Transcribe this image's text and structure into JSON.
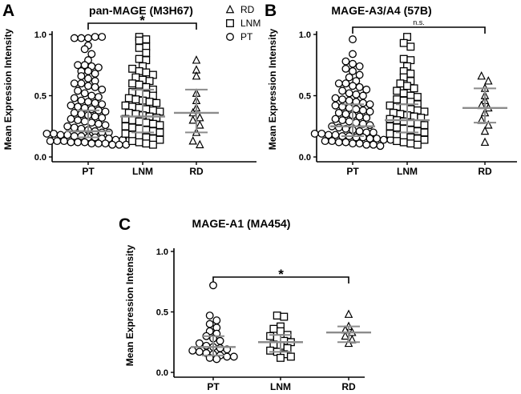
{
  "chart_data": [
    {
      "panel": "A",
      "type": "scatter",
      "title": "pan-MAGE (M3H67)",
      "ylabel": "Mean Expression Intensity",
      "categories": [
        "PT",
        "LNM",
        "RD"
      ],
      "ylim": [
        0,
        1.05
      ],
      "yticks": [
        "0.0",
        "0.5",
        "1.0"
      ],
      "legend": {
        "placement": "top-right",
        "entries": [
          {
            "label": "RD",
            "marker": "triangle"
          },
          {
            "label": "LNM",
            "marker": "square"
          },
          {
            "label": "PT",
            "marker": "circle"
          }
        ]
      },
      "comparison": {
        "from": "PT",
        "to": "RD",
        "label": "*"
      },
      "series": [
        {
          "category": "PT",
          "marker": "circle",
          "median": 0.21,
          "q1": 0.16,
          "q3": 0.38,
          "values": [
            0.97,
            0.97,
            0.97,
            0.98,
            0.98,
            0.91,
            0.88,
            0.84,
            0.79,
            0.75,
            0.75,
            0.74,
            0.73,
            0.7,
            0.7,
            0.68,
            0.66,
            0.64,
            0.62,
            0.6,
            0.6,
            0.58,
            0.57,
            0.55,
            0.54,
            0.52,
            0.5,
            0.49,
            0.48,
            0.46,
            0.45,
            0.44,
            0.43,
            0.42,
            0.41,
            0.4,
            0.39,
            0.38,
            0.37,
            0.36,
            0.35,
            0.34,
            0.33,
            0.32,
            0.31,
            0.3,
            0.29,
            0.28,
            0.27,
            0.26,
            0.25,
            0.24,
            0.23,
            0.22,
            0.21,
            0.2,
            0.2,
            0.19,
            0.19,
            0.18,
            0.18,
            0.17,
            0.17,
            0.16,
            0.16,
            0.15,
            0.15,
            0.14,
            0.14,
            0.14,
            0.13,
            0.13,
            0.13,
            0.12,
            0.12,
            0.12,
            0.11,
            0.11,
            0.11,
            0.1,
            0.1,
            0.1
          ]
        },
        {
          "category": "LNM",
          "marker": "square",
          "median": 0.33,
          "q1": 0.2,
          "q3": 0.55,
          "values": [
            0.98,
            0.96,
            0.95,
            0.9,
            0.89,
            0.85,
            0.8,
            0.79,
            0.74,
            0.72,
            0.7,
            0.69,
            0.67,
            0.65,
            0.63,
            0.62,
            0.6,
            0.59,
            0.57,
            0.55,
            0.53,
            0.52,
            0.51,
            0.5,
            0.48,
            0.47,
            0.46,
            0.45,
            0.44,
            0.42,
            0.41,
            0.4,
            0.39,
            0.38,
            0.37,
            0.36,
            0.35,
            0.34,
            0.33,
            0.32,
            0.31,
            0.3,
            0.29,
            0.28,
            0.27,
            0.26,
            0.25,
            0.24,
            0.23,
            0.22,
            0.21,
            0.2,
            0.19,
            0.18,
            0.17,
            0.16,
            0.15,
            0.14,
            0.13,
            0.12,
            0.11,
            0.1
          ]
        },
        {
          "category": "RD",
          "marker": "triangle",
          "median": 0.36,
          "q1": 0.2,
          "q3": 0.55,
          "values": [
            0.79,
            0.71,
            0.66,
            0.52,
            0.46,
            0.4,
            0.36,
            0.32,
            0.3,
            0.26,
            0.2,
            0.13,
            0.1
          ]
        }
      ]
    },
    {
      "panel": "B",
      "type": "scatter",
      "title": "MAGE-A3/A4  (57B)",
      "ylabel": "Mean Expression Intensity",
      "categories": [
        "PT",
        "LNM",
        "RD"
      ],
      "ylim": [
        0,
        1.05
      ],
      "yticks": [
        "0.0",
        "0.5",
        "1.0"
      ],
      "comparison": {
        "from": "PT",
        "to": "RD",
        "label": "n.s."
      },
      "series": [
        {
          "category": "PT",
          "marker": "circle",
          "median": 0.25,
          "q1": 0.17,
          "q3": 0.43,
          "values": [
            0.96,
            0.84,
            0.78,
            0.76,
            0.74,
            0.72,
            0.7,
            0.67,
            0.65,
            0.62,
            0.6,
            0.6,
            0.58,
            0.57,
            0.55,
            0.54,
            0.52,
            0.51,
            0.5,
            0.48,
            0.47,
            0.46,
            0.45,
            0.44,
            0.43,
            0.42,
            0.41,
            0.4,
            0.39,
            0.38,
            0.37,
            0.36,
            0.35,
            0.34,
            0.33,
            0.32,
            0.31,
            0.3,
            0.29,
            0.28,
            0.27,
            0.26,
            0.25,
            0.24,
            0.23,
            0.22,
            0.21,
            0.2,
            0.2,
            0.19,
            0.19,
            0.18,
            0.18,
            0.17,
            0.17,
            0.16,
            0.16,
            0.15,
            0.15,
            0.14,
            0.14,
            0.13,
            0.13,
            0.12,
            0.12,
            0.11,
            0.11,
            0.1,
            0.1,
            0.09
          ]
        },
        {
          "category": "LNM",
          "marker": "square",
          "median": 0.3,
          "q1": 0.2,
          "q3": 0.43,
          "values": [
            0.98,
            0.93,
            0.9,
            0.8,
            0.79,
            0.74,
            0.7,
            0.68,
            0.65,
            0.62,
            0.6,
            0.58,
            0.56,
            0.54,
            0.52,
            0.5,
            0.49,
            0.47,
            0.46,
            0.45,
            0.43,
            0.42,
            0.41,
            0.4,
            0.39,
            0.38,
            0.37,
            0.36,
            0.35,
            0.34,
            0.33,
            0.32,
            0.31,
            0.3,
            0.29,
            0.28,
            0.27,
            0.26,
            0.25,
            0.24,
            0.23,
            0.22,
            0.21,
            0.2,
            0.19,
            0.18,
            0.17,
            0.16,
            0.15,
            0.14,
            0.13,
            0.12,
            0.11,
            0.1
          ]
        },
        {
          "category": "RD",
          "marker": "triangle",
          "median": 0.4,
          "q1": 0.28,
          "q3": 0.56,
          "values": [
            0.66,
            0.62,
            0.56,
            0.5,
            0.46,
            0.42,
            0.4,
            0.36,
            0.3,
            0.26,
            0.21,
            0.12
          ]
        }
      ]
    },
    {
      "panel": "C",
      "type": "scatter",
      "title": "MAGE-A1 (MA454)",
      "ylabel": "Mean Expression Intensity",
      "categories": [
        "PT",
        "LNM",
        "RD"
      ],
      "ylim": [
        0,
        1.05
      ],
      "yticks": [
        "0.0",
        "0.5",
        "1.0"
      ],
      "comparison": {
        "from": "PT",
        "to": "RD",
        "label": "*"
      },
      "series": [
        {
          "category": "PT",
          "marker": "circle",
          "median": 0.21,
          "q1": 0.14,
          "q3": 0.3,
          "values": [
            0.72,
            0.47,
            0.43,
            0.4,
            0.37,
            0.34,
            0.32,
            0.3,
            0.28,
            0.26,
            0.24,
            0.22,
            0.21,
            0.2,
            0.19,
            0.18,
            0.17,
            0.16,
            0.15,
            0.14,
            0.13,
            0.13,
            0.12,
            0.11
          ]
        },
        {
          "category": "LNM",
          "marker": "square",
          "median": 0.25,
          "q1": 0.17,
          "q3": 0.31,
          "values": [
            0.47,
            0.46,
            0.38,
            0.36,
            0.34,
            0.31,
            0.3,
            0.28,
            0.26,
            0.25,
            0.23,
            0.22,
            0.2,
            0.18,
            0.17,
            0.15,
            0.13,
            0.12
          ]
        },
        {
          "category": "RD",
          "marker": "triangle",
          "median": 0.33,
          "q1": 0.25,
          "q3": 0.38,
          "values": [
            0.48,
            0.38,
            0.35,
            0.33,
            0.3,
            0.27,
            0.24
          ]
        }
      ]
    }
  ]
}
